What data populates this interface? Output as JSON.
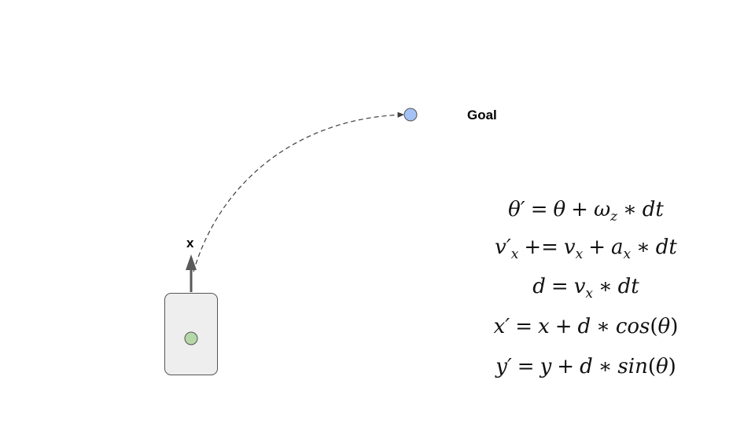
{
  "labels": {
    "goal": "Goal",
    "heading_axis": "x"
  },
  "colors": {
    "goal_marker": "#a4c2f4",
    "robot_center": "#b6d7a8",
    "robot_body": "#eeeeee",
    "arrow": "#595959",
    "path": "#3d3d3d"
  },
  "equations": {
    "eq1": {
      "lhs": "θ′",
      "op": "=",
      "rhs": "θ + ω_z ∗ dt"
    },
    "eq2": {
      "lhs": "v′_x",
      "op": "+=",
      "rhs": "v_x + a_x ∗ dt"
    },
    "eq3": {
      "lhs": "d",
      "op": "=",
      "rhs": "v_x ∗ dt"
    },
    "eq4": {
      "lhs": "x′",
      "op": "=",
      "rhs": "x + d ∗ cos(θ)"
    },
    "eq5": {
      "lhs": "y′",
      "op": "=",
      "rhs": "y + d ∗ sin(θ)"
    }
  }
}
